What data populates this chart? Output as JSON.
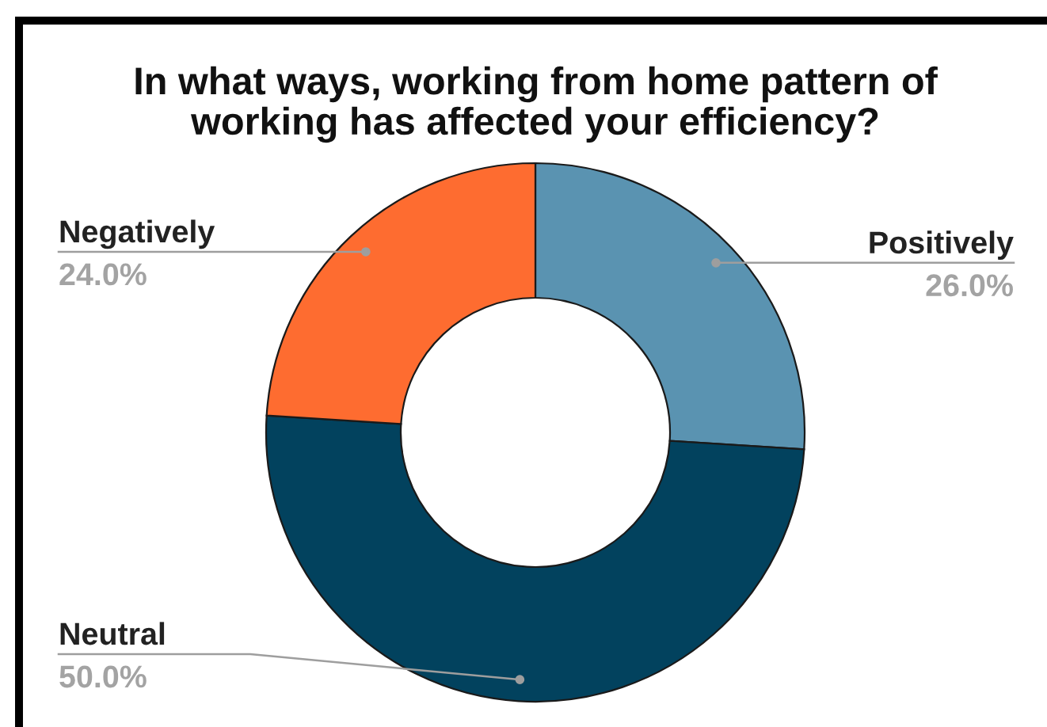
{
  "chart_data": {
    "type": "donut",
    "title": "In what ways, working from home pattern of\nworking has affected your efficiency?",
    "categories": [
      "Positively",
      "Neutral",
      "Negatively"
    ],
    "values": [
      26.0,
      50.0,
      24.0
    ],
    "colors": [
      "#5a93b1",
      "#02425e",
      "#fe6c30"
    ],
    "value_labels": [
      "26.0%",
      "50.0%",
      "24.0%"
    ]
  }
}
